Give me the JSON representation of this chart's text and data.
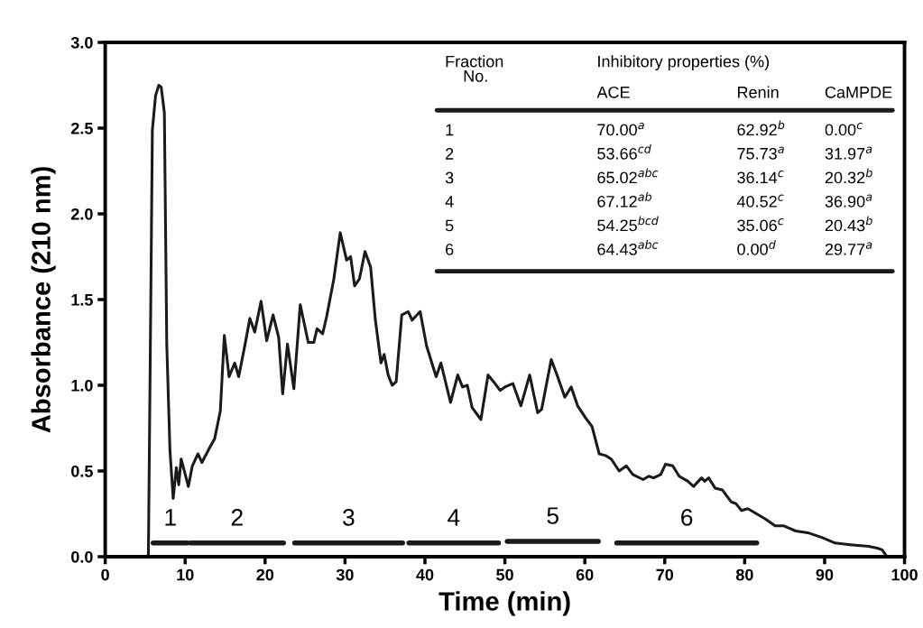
{
  "chart_data": {
    "type": "line",
    "xlabel": "Time (min)",
    "ylabel": "Absorbance (210 nm)",
    "xlim": [
      0,
      100
    ],
    "ylim": [
      0,
      3.0
    ],
    "xticks": [
      0,
      10,
      20,
      30,
      40,
      50,
      60,
      70,
      80,
      90,
      100
    ],
    "yticks": [
      {
        "value": 0,
        "label": "0.0"
      },
      0.5,
      {
        "value": 1,
        "label": "1.0"
      },
      1.5,
      {
        "value": 2,
        "label": "2.0"
      },
      2.5,
      {
        "value": 3,
        "label": "3.0"
      }
    ],
    "grid": false,
    "legend": false,
    "marker": "none",
    "line_style": "solid",
    "series": [
      {
        "color": "#1a1a1a",
        "x": [
          5.4,
          5.9,
          6.3,
          6.7,
          7.0,
          7.4,
          7.7,
          8.1,
          8.5,
          8.9,
          9.2,
          9.5,
          10.4,
          10.9,
          11.6,
          12.1,
          13.0,
          13.7,
          14.4,
          14.9,
          15.5,
          16.2,
          16.7,
          17.5,
          18.1,
          18.7,
          19.5,
          20.2,
          21.0,
          21.7,
          22.2,
          22.8,
          23.6,
          24.4,
          25.4,
          26.1,
          26.5,
          27.2,
          27.7,
          28.6,
          29.4,
          30.2,
          30.7,
          31.2,
          31.8,
          32.5,
          33.2,
          33.8,
          34.5,
          34.9,
          35.4,
          35.9,
          36.4,
          37.1,
          37.9,
          38.4,
          39.4,
          40.2,
          41.4,
          42.0,
          43.2,
          44.1,
          44.7,
          45.3,
          45.9,
          47.0,
          47.9,
          48.6,
          49.4,
          50.0,
          51.0,
          52.0,
          53.1,
          54.1,
          54.6,
          55.8,
          56.6,
          57.5,
          58.3,
          59.1,
          60.1,
          60.9,
          61.8,
          62.6,
          63.3,
          64.3,
          65.2,
          66.0,
          67.3,
          68.0,
          68.6,
          69.5,
          70.1,
          71.0,
          71.8,
          72.9,
          73.6,
          74.6,
          75.0,
          75.5,
          76.3,
          77.2,
          78.3,
          78.9,
          79.6,
          80.4,
          81.5,
          82.6,
          83.8,
          84.9,
          86.4,
          87.9,
          89.8,
          91.3,
          93.2,
          95.5,
          96.6,
          97.2,
          97.8
        ],
        "values": [
          0,
          2.49,
          2.69,
          2.75,
          2.74,
          2.59,
          1.24,
          0.62,
          0.34,
          0.52,
          0.42,
          0.57,
          0.41,
          0.53,
          0.6,
          0.55,
          0.63,
          0.69,
          0.85,
          1.29,
          1.05,
          1.13,
          1.05,
          1.24,
          1.39,
          1.31,
          1.49,
          1.26,
          1.41,
          1.28,
          0.95,
          1.24,
          0.98,
          1.47,
          1.25,
          1.25,
          1.33,
          1.3,
          1.4,
          1.62,
          1.89,
          1.73,
          1.75,
          1.58,
          1.62,
          1.78,
          1.69,
          1.38,
          1.13,
          1.18,
          1.06,
          1.0,
          1.02,
          1.41,
          1.43,
          1.38,
          1.43,
          1.23,
          1.05,
          1.13,
          0.9,
          1.06,
          0.99,
          1.0,
          0.87,
          0.8,
          1.06,
          1.02,
          0.97,
          0.99,
          1.01,
          0.88,
          1.06,
          0.84,
          0.86,
          1.15,
          1.05,
          0.93,
          0.99,
          0.88,
          0.81,
          0.76,
          0.6,
          0.59,
          0.57,
          0.5,
          0.53,
          0.48,
          0.45,
          0.47,
          0.46,
          0.48,
          0.54,
          0.53,
          0.47,
          0.44,
          0.41,
          0.46,
          0.44,
          0.46,
          0.4,
          0.39,
          0.32,
          0.31,
          0.27,
          0.28,
          0.25,
          0.22,
          0.18,
          0.18,
          0.15,
          0.14,
          0.11,
          0.08,
          0.07,
          0.06,
          0.05,
          0.04,
          0
        ]
      },
      {
        "name": "1",
        "color": "#1a1a1a",
        "x": [
          6.0,
          10.3
        ],
        "values": [
          0.08,
          0.08
        ]
      },
      {
        "name": "2",
        "color": "#1a1a1a",
        "x": [
          10.7,
          22.3
        ],
        "values": [
          0.08,
          0.08
        ]
      },
      {
        "name": "3",
        "color": "#1a1a1a",
        "x": [
          23.7,
          37.2
        ],
        "values": [
          0.08,
          0.08
        ]
      },
      {
        "name": "4",
        "color": "#1a1a1a",
        "x": [
          38.0,
          49.2
        ],
        "values": [
          0.08,
          0.08
        ]
      },
      {
        "name": "5",
        "color": "#1a1a1a",
        "x": [
          50.3,
          61.7
        ],
        "values": [
          0.09,
          0.09
        ]
      },
      {
        "name": "6",
        "color": "#1a1a1a",
        "x": [
          64.0,
          81.5
        ],
        "values": [
          0.08,
          0.08
        ]
      }
    ],
    "annotations": [
      "Fraction\n    No.",
      "Inhibitory properties (%)",
      "ACE",
      "Renin",
      "CaMPDE",
      "1",
      "70.00$^{a}$",
      "62.92$^{b}$",
      "0.00$^{c}$",
      "2",
      "53.66$^{cd}$",
      "75.73$^{a}$",
      "31.97$^{a}$",
      "3",
      "65.02$^{abc}$",
      "36.14$^{c}$",
      "20.32$^{b}$",
      "4",
      "67.12$^{ab}$",
      "40.52$^{c}$",
      "36.90$^{a}$",
      "5",
      "54.25$^{bcd}$",
      "35.06$^{c}$",
      "20.43$^{b}$",
      "6",
      "64.43$^{abc}$",
      "0.00$^{d}$",
      "29.77$^{a}$"
    ]
  }
}
